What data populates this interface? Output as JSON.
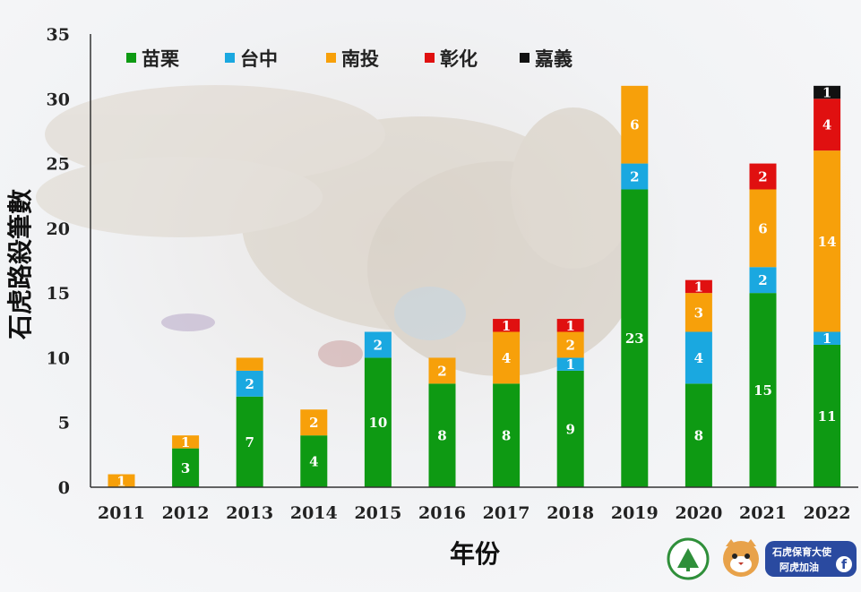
{
  "chart_data": {
    "type": "bar",
    "stacked": true,
    "categories": [
      "2011",
      "2012",
      "2013",
      "2014",
      "2015",
      "2016",
      "2017",
      "2018",
      "2019",
      "2020",
      "2021",
      "2022"
    ],
    "series": [
      {
        "name": "苗栗",
        "color": "#0e9a13",
        "values": [
          0,
          3,
          7,
          4,
          10,
          8,
          8,
          9,
          23,
          8,
          15,
          11
        ]
      },
      {
        "name": "台中",
        "color": "#1aa8e0",
        "values": [
          0,
          0,
          2,
          0,
          2,
          0,
          0,
          1,
          2,
          4,
          2,
          1
        ]
      },
      {
        "name": "南投",
        "color": "#f7a00a",
        "values": [
          1,
          1,
          1,
          2,
          0,
          2,
          4,
          2,
          6,
          3,
          6,
          14
        ]
      },
      {
        "name": "彰化",
        "color": "#e01010",
        "values": [
          0,
          0,
          0,
          0,
          0,
          0,
          1,
          1,
          0,
          1,
          2,
          4
        ]
      },
      {
        "name": "嘉義",
        "color": "#111111",
        "values": [
          0,
          0,
          0,
          0,
          0,
          0,
          0,
          0,
          0,
          0,
          0,
          1
        ]
      }
    ],
    "data_labels": [
      [
        "",
        "3",
        "7",
        "4",
        "10",
        "8",
        "8",
        "9",
        "23",
        "8",
        "15",
        "11"
      ],
      [
        "",
        "",
        "2",
        "",
        "2",
        "",
        "",
        "1",
        "2",
        "4",
        "2",
        "1"
      ],
      [
        "1",
        "1",
        "",
        "2",
        "",
        "2",
        "4",
        "2",
        "6",
        "3",
        "6",
        "14"
      ],
      [
        "",
        "",
        "",
        "",
        "",
        "",
        "1",
        "1",
        "",
        "1",
        "2",
        "4"
      ],
      [
        "",
        "",
        "",
        "",
        "",
        "",
        "",
        "",
        "",
        "",
        "",
        "1"
      ]
    ],
    "ylim": [
      0,
      35
    ],
    "yticks": [
      "0",
      "5",
      "10",
      "15",
      "20",
      "25",
      "30",
      "35"
    ],
    "xlabel": "年份",
    "ylabel": "石虎路殺筆數",
    "legend_position": "top",
    "grid": false
  },
  "logos": {
    "badge_text": "石虎保育大使",
    "badge_sub": "阿虎加油",
    "fb_letter": "f"
  }
}
